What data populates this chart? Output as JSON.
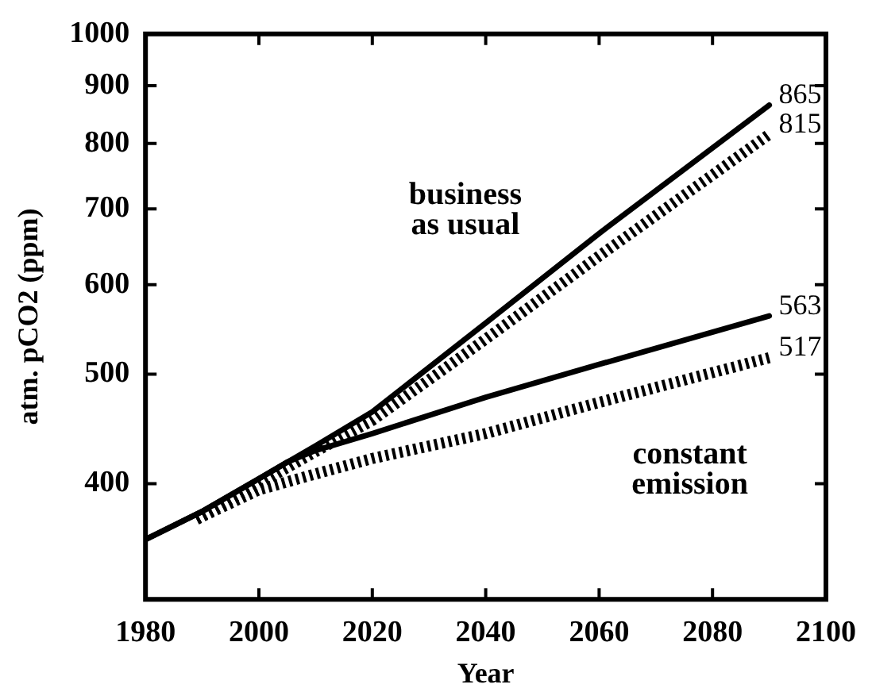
{
  "chart_data": {
    "type": "line",
    "xlabel": "Year",
    "ylabel": "atm. pCO2 (ppm)",
    "log": "y",
    "grid": false,
    "legend": false,
    "marker": "none",
    "xlim": [
      1980,
      2100
    ],
    "xticks": [
      1980,
      2000,
      2020,
      2040,
      2060,
      2080,
      2100
    ],
    "ylim": [
      316,
      1000
    ],
    "yticks": [
      400,
      500,
      600,
      700,
      800,
      900,
      1000
    ],
    "series": [
      {
        "color": "#000000",
        "line_style": "solid",
        "x": [
          1980,
          1990,
          2000,
          2010,
          2020,
          2040,
          2060,
          2090
        ],
        "values": [
          357,
          378,
          404,
          432,
          463,
          555,
          666,
          865
        ],
        "value_labels": [
          null,
          null,
          null,
          null,
          null,
          null,
          null,
          "865"
        ]
      },
      {
        "color": "#000000",
        "line_style": "dashed",
        "x": [
          1989,
          2000,
          2010,
          2020,
          2040,
          2060,
          2090
        ],
        "values": [
          372,
          400,
          427,
          455,
          537,
          636,
          815
        ],
        "value_labels": [
          null,
          null,
          null,
          null,
          null,
          null,
          "815"
        ]
      },
      {
        "color": "#000000",
        "line_style": "solid",
        "x": [
          1980,
          1990,
          2000,
          2005,
          2010,
          2020,
          2040,
          2060,
          2090
        ],
        "values": [
          357,
          378,
          404,
          418,
          428,
          443,
          477,
          510,
          563
        ],
        "value_labels": [
          null,
          null,
          null,
          null,
          null,
          null,
          null,
          null,
          "563"
        ]
      },
      {
        "color": "#000000",
        "line_style": "dashed",
        "x": [
          1989,
          2000,
          2010,
          2020,
          2040,
          2060,
          2090
        ],
        "values": [
          372,
          395,
          408,
          421,
          443,
          472,
          517
        ],
        "value_labels": [
          null,
          null,
          null,
          null,
          null,
          null,
          "517"
        ]
      }
    ],
    "annotations": [
      "business\nas usual",
      "constant\nemission"
    ]
  }
}
